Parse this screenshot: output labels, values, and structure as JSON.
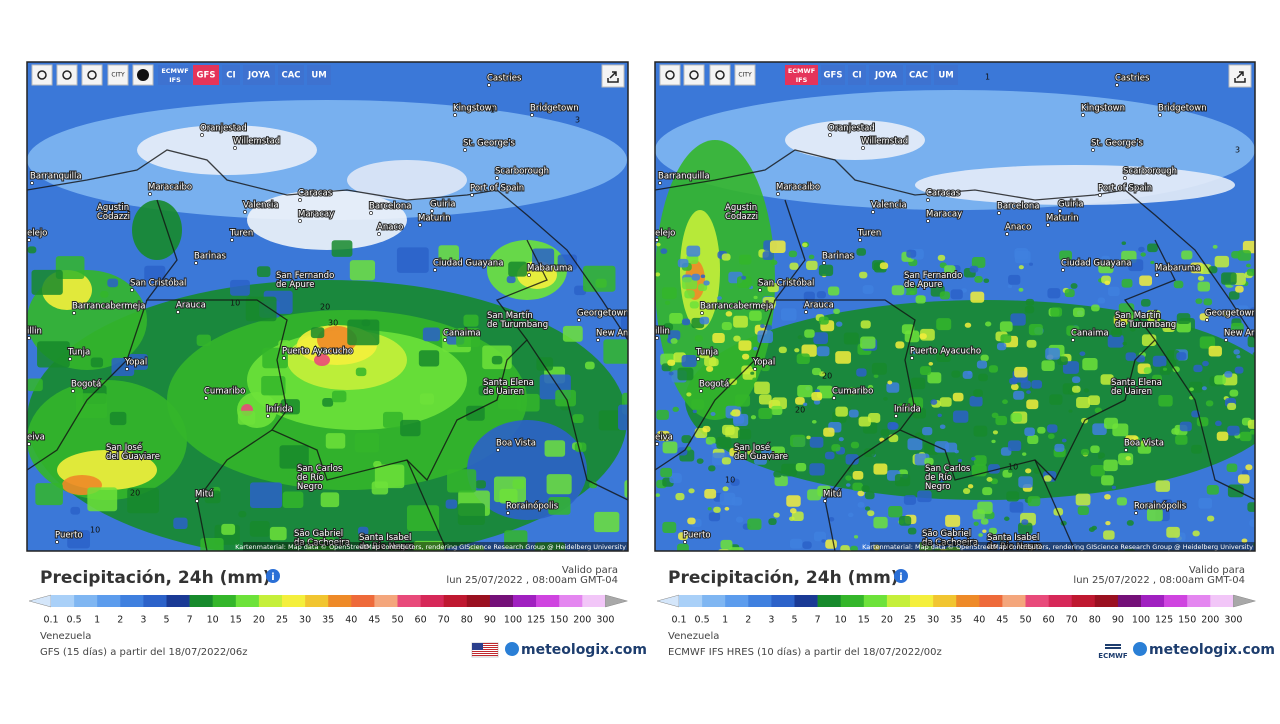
{
  "map_labels": [
    "Castries",
    "Kingstown",
    "Bridgetown",
    "Oranjestad",
    "Willemstad",
    "St. George's",
    "Scarborough",
    "Barranquilla",
    "Maracaibo",
    "Port of Spain",
    "Caracas",
    "Agustin Codazzi",
    "Valencia",
    "Barcelona",
    "Guiria",
    "Maracay",
    "Maturin",
    "Anaco",
    "Turen",
    "elejo",
    "Barinas",
    "Ciudad Guayana",
    "Mabaruma",
    "San Fernando de Apure",
    "San Cristóbal",
    "Arauca",
    "Barrancabermeja",
    "San Martín de Turumbang",
    "Georgetown",
    "Canaima",
    "New Amsterdam",
    "illin",
    "Tunja",
    "Puerto Ayacucho",
    "Yopal",
    "Cumaribo",
    "Bogotá",
    "Santa Elena de Uairen",
    "Inírida",
    "eiva",
    "Boa Vista",
    "San José del Guaviare",
    "San Carlos de Río Negro",
    "Mitú",
    "Rorainópolis",
    "Puerto",
    "São Gabriel da Cachoeira",
    "Santa Isabel do Rio Negro"
  ],
  "scale": {
    "labels": [
      "0.1",
      "0.5",
      "1",
      "2",
      "3",
      "5",
      "7",
      "10",
      "15",
      "20",
      "25",
      "30",
      "35",
      "40",
      "45",
      "50",
      "60",
      "70",
      "80",
      "90",
      "100",
      "125",
      "150",
      "200",
      "300"
    ],
    "colors": [
      "#a9d0f8",
      "#7fb6f2",
      "#5c9ced",
      "#3f80df",
      "#2c62c9",
      "#1a3a95",
      "#178a2c",
      "#34b62a",
      "#6de23a",
      "#c5ef3a",
      "#f4ef3c",
      "#f1c530",
      "#ee8a28",
      "#ee6a3a",
      "#f4a67c",
      "#e84a7a",
      "#d62858",
      "#bf1830",
      "#9a1020",
      "#741078",
      "#a020c0",
      "#cf44e0",
      "#e486f0",
      "#f2c6f8"
    ],
    "under_color": "#d4e6fa",
    "over_color": "#a8a8a8"
  },
  "panels": [
    {
      "toolbar": [
        "CITY",
        "ECMWF IFS",
        "GFS",
        "CI",
        "JOYA",
        "CAC",
        "UM"
      ],
      "active": 2,
      "contours": [
        "10",
        "20",
        "30",
        "20",
        "10",
        "3",
        "1"
      ],
      "attribution": "Kartenmaterial: Map data © OpenStreetMap contributors, rendering GIScience Research Group @ Heidelberg University",
      "title": "Precipitación, 24h (mm)",
      "valid_label": "Valido para",
      "valid_time": "lun 25/07/2022 , 08:00am GMT-04",
      "region": "Venezuela",
      "model": "GFS (15 días) a partir del 18/07/2022/06z",
      "brand": "meteologix.com"
    },
    {
      "toolbar": [
        "CITY",
        "ECMWF IFS",
        "GFS",
        "CI",
        "JOYA",
        "CAC",
        "UM"
      ],
      "active": 1,
      "contours": [
        "20",
        "10",
        "10",
        "20",
        "1",
        "3"
      ],
      "attribution": "Kartenmaterial: Map data © OpenStreetMap contributors, rendering GIScience Research Group @ Heidelberg University",
      "title": "Precipitación, 24h (mm)",
      "valid_label": "Valido para",
      "valid_time": "lun 25/07/2022 , 08:00am GMT-04",
      "region": "Venezuela",
      "model": "ECMWF IFS HRES (10 días) a partir del 18/07/2022/00z",
      "badge": "ECMWF",
      "brand": "meteologix.com"
    }
  ]
}
